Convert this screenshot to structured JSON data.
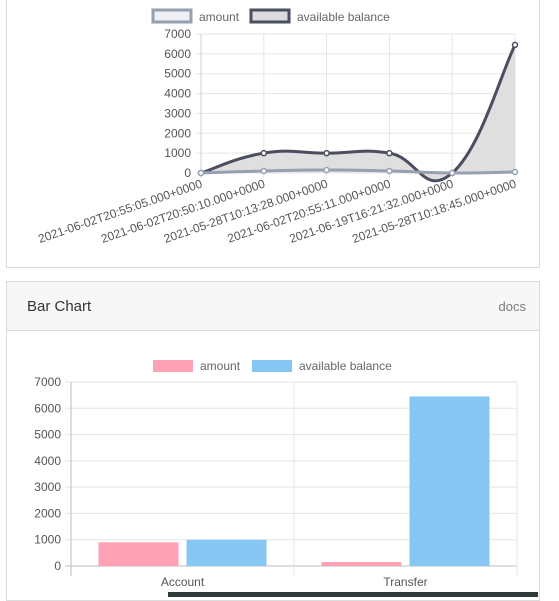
{
  "line_card": {
    "legend": [
      "amount",
      "available balance"
    ]
  },
  "bar_card": {
    "title": "Bar Chart",
    "docs_label": "docs"
  },
  "colors": {
    "amount_stroke": "#97a0b0",
    "amount_fill": "#eef0f4",
    "balance_stroke": "#4a4e5e",
    "balance_fill": "#dcdcdc",
    "bar_amount": "#ffa1b5",
    "bar_balance": "#86c7f3",
    "grid": "#e5e5e5",
    "tick_text": "#555555"
  },
  "chart_data": [
    {
      "type": "line",
      "title": "",
      "categories": [
        "2021-06-02T20:55:05.000+0000",
        "2021-06-02T20:50:10.000+0000",
        "2021-05-28T10:13:28.000+0000",
        "2021-06-02T20:55:11.000+0000",
        "2021-06-19T16:21:32.000+0000",
        "2021-05-28T10:18:45.000+0000"
      ],
      "series": [
        {
          "name": "amount",
          "values": [
            0,
            100,
            150,
            100,
            0,
            50
          ]
        },
        {
          "name": "available balance",
          "values": [
            0,
            1000,
            1000,
            1000,
            0,
            6450
          ]
        }
      ],
      "ylim": [
        0,
        7000
      ],
      "yticks": [
        0,
        1000,
        2000,
        3000,
        4000,
        5000,
        6000,
        7000
      ],
      "xlabel": "",
      "ylabel": "",
      "legend_position": "top"
    },
    {
      "type": "bar",
      "title": "",
      "categories": [
        "Account",
        "Transfer"
      ],
      "series": [
        {
          "name": "amount",
          "values": [
            900,
            150
          ]
        },
        {
          "name": "available balance",
          "values": [
            1000,
            6450
          ]
        }
      ],
      "ylim": [
        0,
        7000
      ],
      "yticks": [
        0,
        1000,
        2000,
        3000,
        4000,
        5000,
        6000,
        7000
      ],
      "xlabel": "",
      "ylabel": "",
      "legend_position": "top"
    }
  ]
}
